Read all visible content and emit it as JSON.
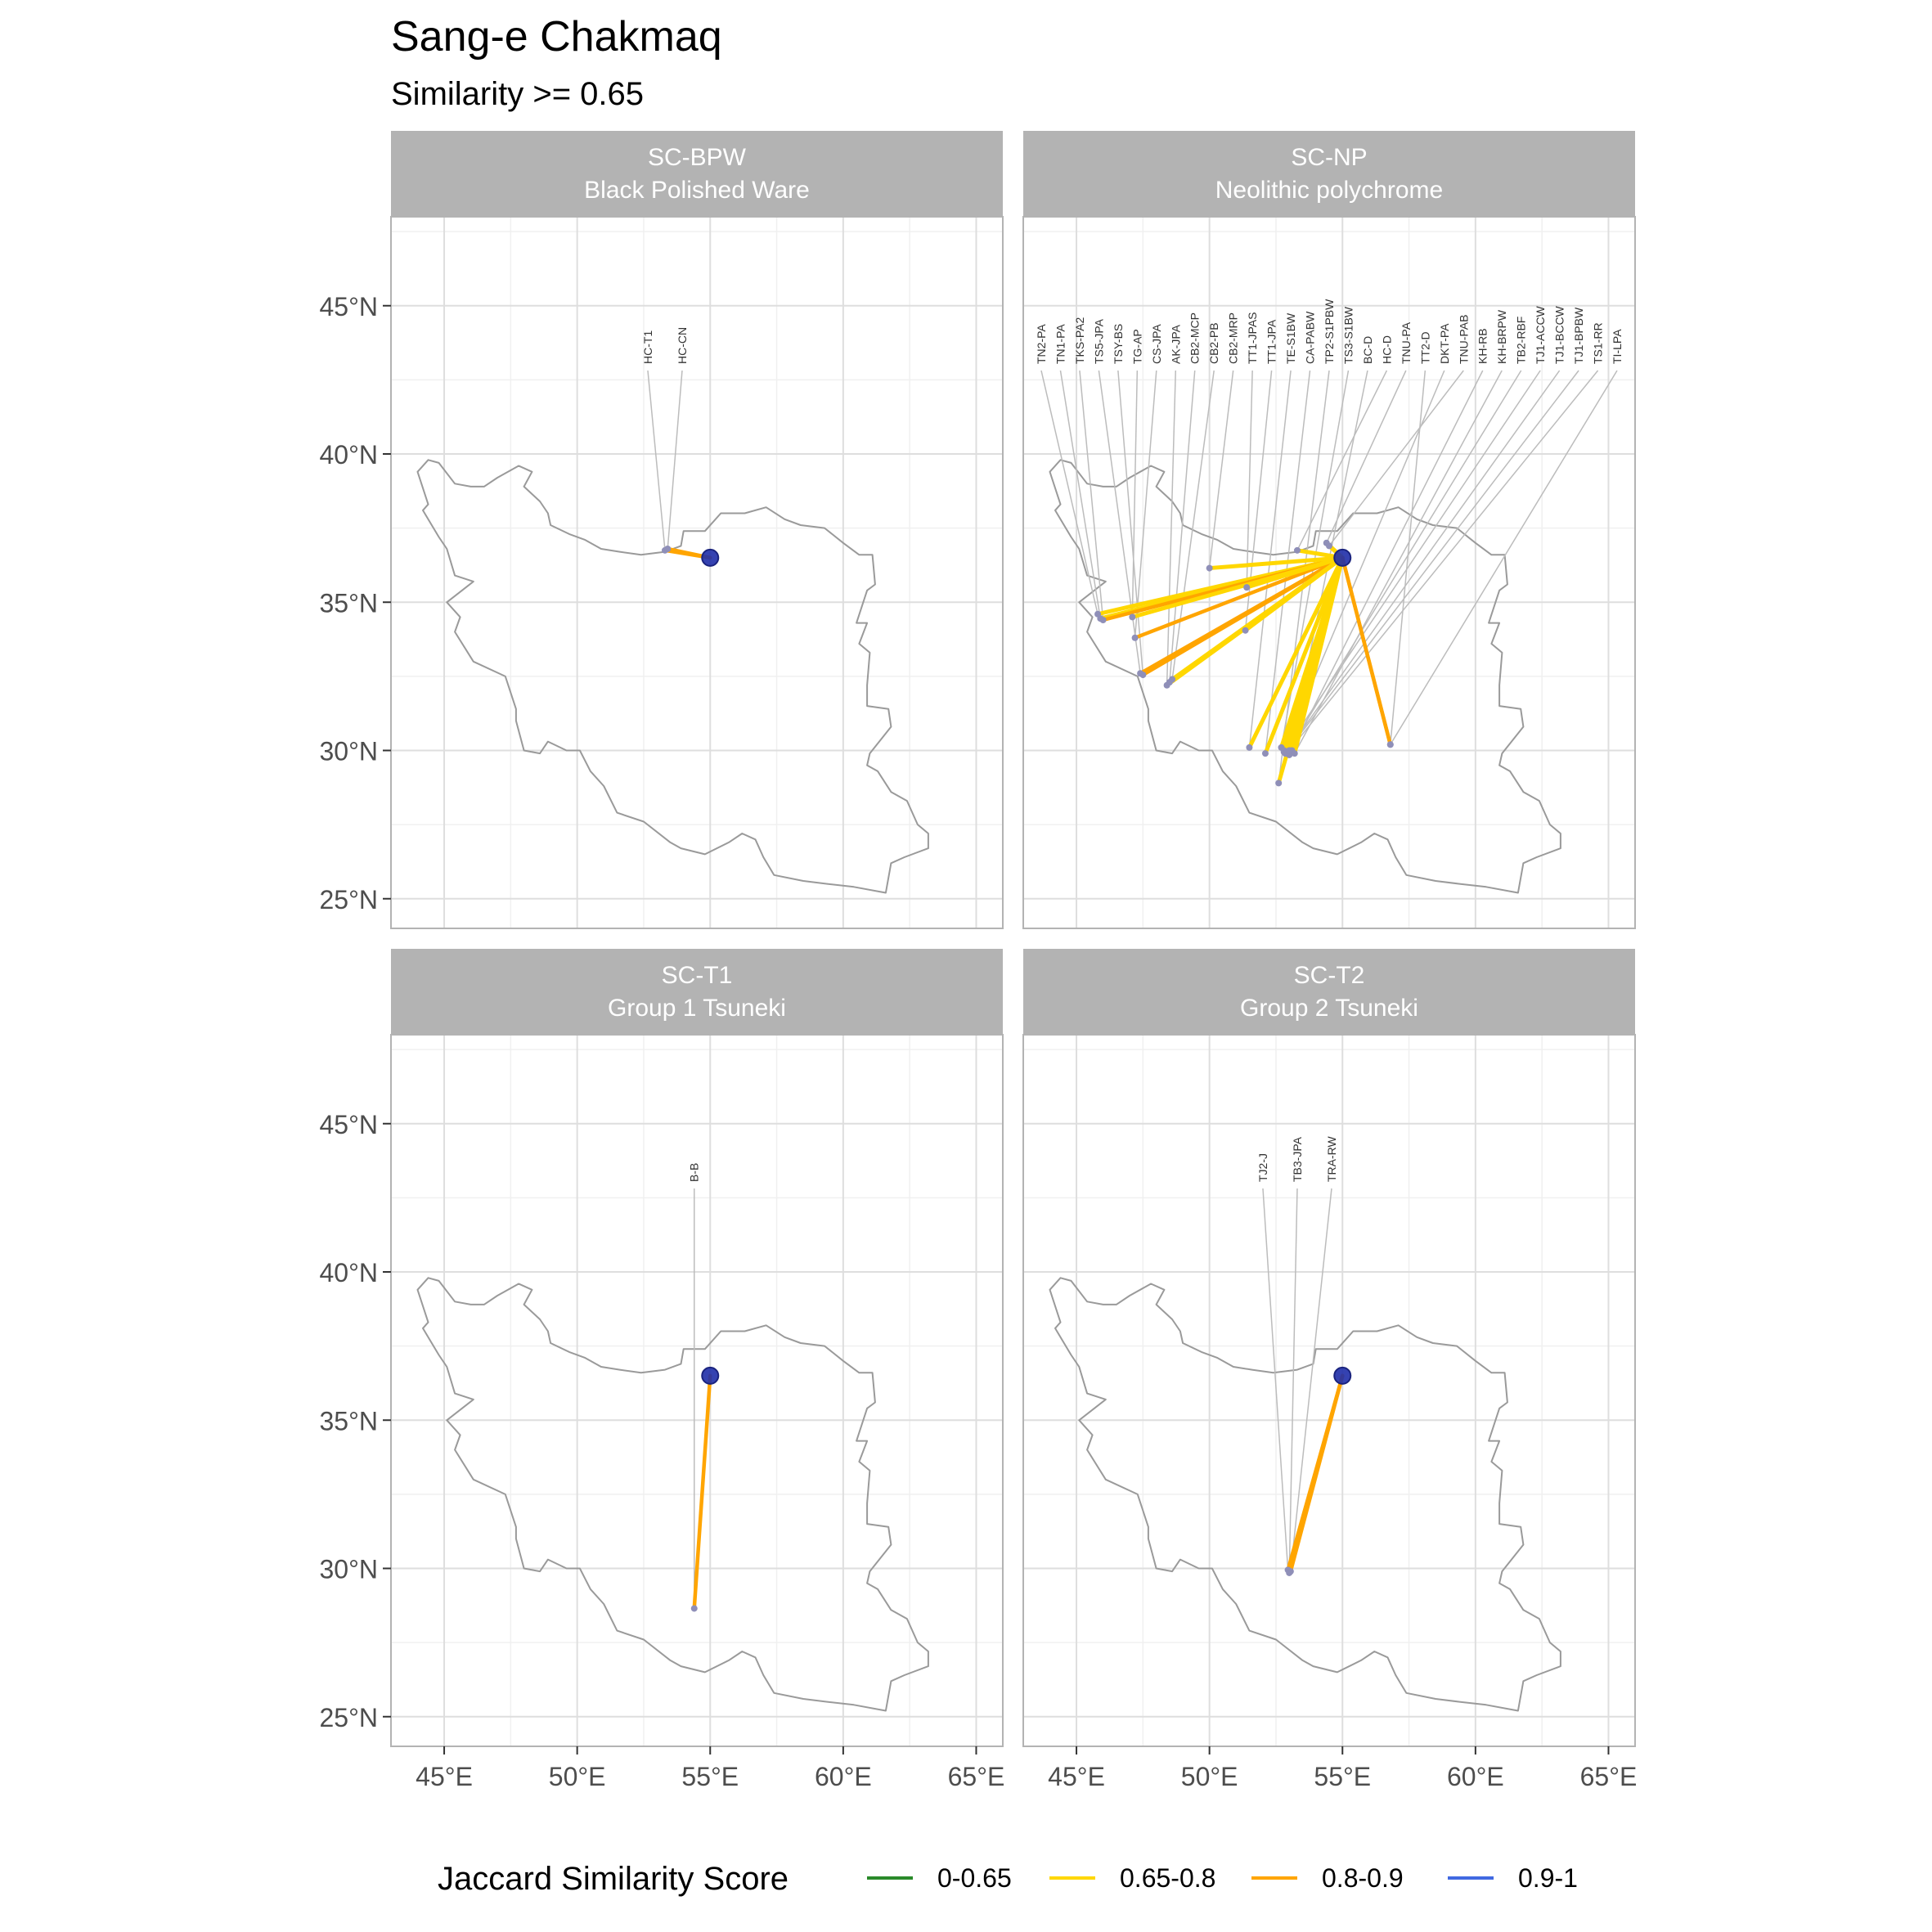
{
  "title": "Sang-e Chakmaq",
  "subtitle": "Similarity >= 0.65",
  "x_ticks": [
    "45°E",
    "50°E",
    "55°E",
    "60°E",
    "65°E"
  ],
  "y_ticks": [
    "45°N",
    "40°N",
    "35°N",
    "30°N",
    "25°N"
  ],
  "legend": {
    "title": "Jaccard Similarity Score",
    "placement": "bottom",
    "items": [
      {
        "label": "0-0.65",
        "color": "#2a8a2a"
      },
      {
        "label": "0.65-0.8",
        "color": "#FFD700"
      },
      {
        "label": "0.8-0.9",
        "color": "#FFA500"
      },
      {
        "label": "0.9-1",
        "color": "#4169E1"
      }
    ]
  },
  "chart_data": {
    "type": "map",
    "xlim": [
      43,
      66
    ],
    "ylim": [
      24,
      48
    ],
    "grid": true,
    "source_site": {
      "lon": 55.0,
      "lat": 36.5
    },
    "facets": [
      {
        "code": "SC-BPW",
        "name": "Black Polished Ware",
        "links": [
          {
            "label": "HC-T1",
            "lon": 53.3,
            "lat": 36.75,
            "category": "0.8-0.9"
          },
          {
            "label": "HC-CN",
            "lon": 53.4,
            "lat": 36.8,
            "category": "0.8-0.9"
          }
        ]
      },
      {
        "code": "SC-NP",
        "name": "Neolithic polychrome",
        "links": [
          {
            "label": "TN2-PA",
            "lon": 45.8,
            "lat": 34.6,
            "category": "0.65-0.8"
          },
          {
            "label": "TN1-PA",
            "lon": 45.9,
            "lat": 34.45,
            "category": "0.65-0.8"
          },
          {
            "label": "TKS-PA2",
            "lon": 46.0,
            "lat": 34.4,
            "category": "0.8-0.9"
          },
          {
            "label": "TS5-JPA",
            "lon": 47.4,
            "lat": 32.6,
            "category": "0.8-0.9"
          },
          {
            "label": "TSY-BS",
            "lon": 47.5,
            "lat": 32.55,
            "category": "0.8-0.9"
          },
          {
            "label": "TG-AP",
            "lon": 47.1,
            "lat": 34.5,
            "category": "0.65-0.8"
          },
          {
            "label": "CS-JPA",
            "lon": 47.2,
            "lat": 33.8,
            "category": "0.8-0.9"
          },
          {
            "label": "AK-JPA",
            "lon": 48.4,
            "lat": 32.2,
            "category": "0.65-0.8"
          },
          {
            "label": "CB2-MCP",
            "lon": 48.5,
            "lat": 32.3,
            "category": "0.65-0.8"
          },
          {
            "label": "CB2-PB",
            "lon": 48.6,
            "lat": 32.4,
            "category": "0.65-0.8"
          },
          {
            "label": "CB2-MRP",
            "lon": 50.0,
            "lat": 36.15,
            "category": "0.65-0.8"
          },
          {
            "label": "TT1-JPAS",
            "lon": 51.4,
            "lat": 35.5,
            "category": "0.65-0.8"
          },
          {
            "label": "TT1-JPA",
            "lon": 51.35,
            "lat": 34.05,
            "category": "0.65-0.8"
          },
          {
            "label": "TE-S1BW",
            "lon": 51.5,
            "lat": 30.1,
            "category": "0.65-0.8"
          },
          {
            "label": "CA-PABW",
            "lon": 52.1,
            "lat": 29.9,
            "category": "0.65-0.8"
          },
          {
            "label": "TP2-S1PBW",
            "lon": 52.6,
            "lat": 28.9,
            "category": "0.65-0.8"
          },
          {
            "label": "TS3-S1BW",
            "lon": 52.7,
            "lat": 30.1,
            "category": "0.65-0.8"
          },
          {
            "label": "BC-D",
            "lon": 53.0,
            "lat": 29.85,
            "category": "0.65-0.8"
          },
          {
            "label": "HC-D",
            "lon": 53.3,
            "lat": 36.75,
            "category": "0.65-0.8"
          },
          {
            "label": "TNU-PA",
            "lon": 54.4,
            "lat": 37.0,
            "category": "0.65-0.8"
          },
          {
            "label": "TT2-D",
            "lon": 56.8,
            "lat": 30.2,
            "category": "0.8-0.9"
          },
          {
            "label": "DKT-PA",
            "lon": 52.8,
            "lat": 30.0,
            "category": "0.65-0.8"
          },
          {
            "label": "TNU-PAB",
            "lon": 54.5,
            "lat": 36.9,
            "category": "0.65-0.8"
          },
          {
            "label": "KH-RB",
            "lon": 53.1,
            "lat": 30.0,
            "category": "0.65-0.8"
          },
          {
            "label": "KH-BRPW",
            "lon": 53.2,
            "lat": 29.9,
            "category": "0.65-0.8"
          },
          {
            "label": "TB2-RBF",
            "lon": 52.9,
            "lat": 29.9,
            "category": "0.65-0.8"
          },
          {
            "label": "TJ1-ACCW",
            "lon": 52.8,
            "lat": 29.95,
            "category": "0.65-0.8"
          },
          {
            "label": "TJ1-BCCW",
            "lon": 52.85,
            "lat": 29.9,
            "category": "0.65-0.8"
          },
          {
            "label": "TJ1-BPBW",
            "lon": 52.9,
            "lat": 29.95,
            "category": "0.65-0.8"
          },
          {
            "label": "TS1-RR",
            "lon": 53.0,
            "lat": 30.0,
            "category": "0.65-0.8"
          },
          {
            "label": "TI-LPA",
            "lon": 56.8,
            "lat": 30.2,
            "category": "0.8-0.9"
          }
        ]
      },
      {
        "code": "SC-T1",
        "name": "Group 1 Tsuneki",
        "links": [
          {
            "label": "B-B",
            "lon": 54.4,
            "lat": 28.65,
            "category": "0.8-0.9"
          }
        ]
      },
      {
        "code": "SC-T2",
        "name": "Group 2 Tsuneki",
        "links": [
          {
            "label": "TJ2-J",
            "lon": 52.95,
            "lat": 29.95,
            "category": "0.8-0.9"
          },
          {
            "label": "TB3-JPA",
            "lon": 53.0,
            "lat": 29.85,
            "category": "0.8-0.9"
          },
          {
            "label": "TRA-RW",
            "lon": 53.05,
            "lat": 29.9,
            "category": "0.8-0.9"
          }
        ]
      }
    ]
  }
}
